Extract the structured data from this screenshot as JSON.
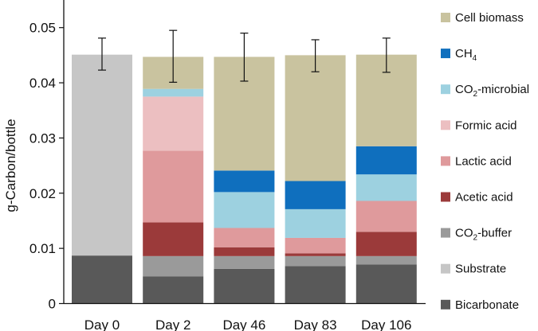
{
  "chart_data": {
    "type": "bar",
    "stacked": true,
    "title": "",
    "xlabel": "",
    "ylabel": "g-Carbon/bottle",
    "ylim": [
      0,
      0.055
    ],
    "yticks": [
      "0",
      "0.01",
      "0.02",
      "0.03",
      "0.04",
      "0.05"
    ],
    "ytick_values": [
      0,
      0.01,
      0.02,
      0.03,
      0.04,
      0.05
    ],
    "categories": [
      "Day 0",
      "Day 2",
      "Day 46",
      "Day 83",
      "Day 106"
    ],
    "series": [
      {
        "name": "Bicarbonate",
        "color": "#595959",
        "values": [
          0.0087,
          0.0049,
          0.0063,
          0.0068,
          0.0071
        ]
      },
      {
        "name": "Substrate",
        "color": "#c6c6c6",
        "values": [
          0.0364,
          0,
          0,
          0,
          0
        ]
      },
      {
        "name": "CO2-buffer",
        "name_main": "CO",
        "name_sub": "2",
        "name_rest": "-buffer",
        "color": "#9a9a9a",
        "values": [
          0,
          0.0037,
          0.0023,
          0.0018,
          0.0015
        ]
      },
      {
        "name": "Acetic acid",
        "color": "#9b3a3a",
        "values": [
          0,
          0.0061,
          0.0016,
          0.0005,
          0.0044
        ]
      },
      {
        "name": "Lactic acid",
        "color": "#df9a9c",
        "values": [
          0,
          0.013,
          0.0035,
          0.0028,
          0.0056
        ]
      },
      {
        "name": "Formic acid",
        "color": "#ecbfc1",
        "values": [
          0,
          0.0098,
          0,
          0,
          0
        ]
      },
      {
        "name": "CO2-microbial",
        "name_main": "CO",
        "name_sub": "2",
        "name_rest": "-microbial",
        "color": "#9dd1e0",
        "values": [
          0,
          0.0014,
          0.0065,
          0.0052,
          0.0048
        ]
      },
      {
        "name": "CH4",
        "name_main": "CH",
        "name_sub": "4",
        "name_rest": "",
        "color": "#0f6fbe",
        "values": [
          0,
          0,
          0.0039,
          0.0051,
          0.0051
        ]
      },
      {
        "name": "Cell biomass",
        "color": "#c9c39f",
        "values": [
          0,
          0.0058,
          0.0206,
          0.0228,
          0.0166
        ]
      }
    ],
    "totals": [
      0.0451,
      0.0447,
      0.0446,
      0.0449,
      0.045
    ],
    "error_bars": {
      "upper": [
        0.0481,
        0.0495,
        0.049,
        0.0478,
        0.0481
      ],
      "lower": [
        0.0423,
        0.0401,
        0.0403,
        0.042,
        0.0419
      ]
    },
    "legend": {
      "position": "right",
      "order": [
        "Cell biomass",
        "CH4",
        "CO2-microbial",
        "Formic acid",
        "Lactic acid",
        "Acetic acid",
        "CO2-buffer",
        "Substrate",
        "Bicarbonate"
      ]
    }
  }
}
